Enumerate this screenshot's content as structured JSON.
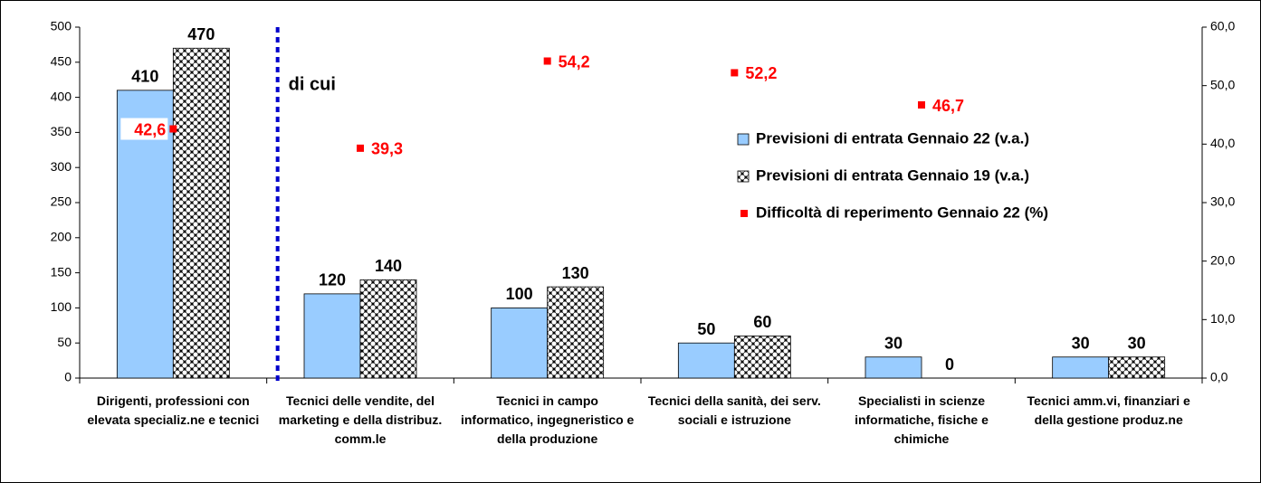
{
  "chart_data": {
    "type": "bar",
    "categories": [
      "Dirigenti, professioni con elevata specializ.ne e tecnici",
      "Tecnici delle vendite, del marketing e della distribuz. comm.le",
      "Tecnici in campo informatico, ingegneristico e della produzione",
      "Tecnici della sanità, dei serv. sociali e istruzione",
      "Specialisti in scienze informatiche, fisiche e chimiche",
      "Tecnici amm.vi, finanziari e della gestione produz.ne"
    ],
    "series": [
      {
        "name": "Previsioni di entrata Gennaio 22 (v.a.)",
        "color": "#99ccff",
        "values": [
          410,
          120,
          100,
          50,
          30,
          30
        ]
      },
      {
        "name": "Previsioni di entrata Gennaio 19 (v.a.)",
        "color": "#000000",
        "values": [
          470,
          140,
          130,
          60,
          0,
          30
        ]
      },
      {
        "name": "Difficoltà di reperimento Gennaio 22 (%)",
        "color": "#ff0000",
        "axis": "y2",
        "values": [
          42.6,
          39.3,
          54.2,
          52.2,
          46.7,
          null
        ],
        "value_labels": [
          "42,6",
          "39,3",
          "54,2",
          "52,2",
          "46,7",
          null
        ]
      }
    ],
    "annotations": [
      "di cui"
    ],
    "ylim": [
      0,
      500
    ],
    "yticks": [
      0,
      50,
      100,
      150,
      200,
      250,
      300,
      350,
      400,
      450,
      500
    ],
    "y2lim": [
      0,
      60
    ],
    "y2ticks": [
      {
        "value": 0,
        "label": "0,0"
      },
      {
        "value": 10,
        "label": "10,0"
      },
      {
        "value": 20,
        "label": "20,0"
      },
      {
        "value": 30,
        "label": "30,0"
      },
      {
        "value": 40,
        "label": "40,0"
      },
      {
        "value": 50,
        "label": "50,0"
      },
      {
        "value": 60,
        "label": "60,0"
      }
    ],
    "legend": "right"
  }
}
